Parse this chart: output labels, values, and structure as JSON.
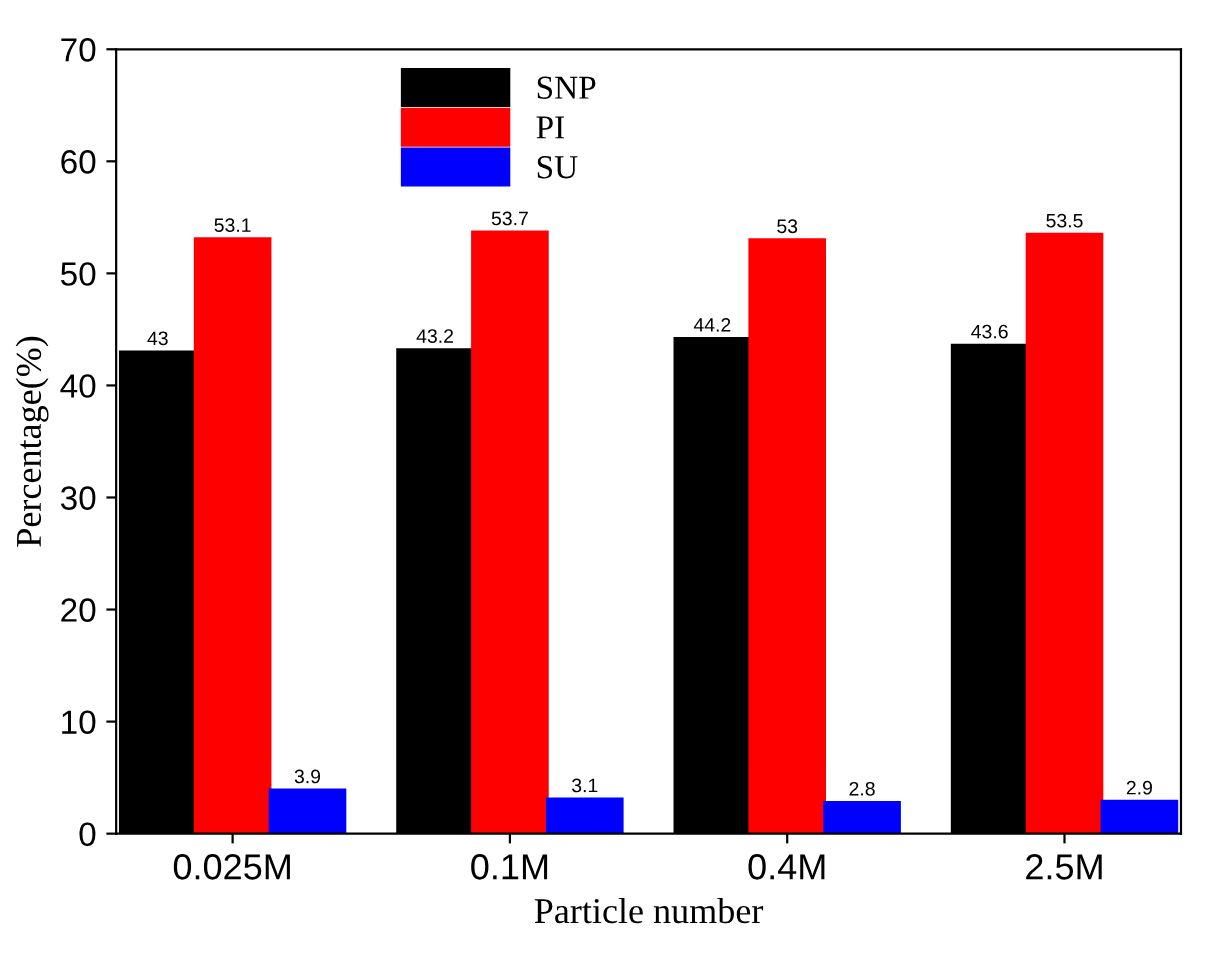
{
  "chart_data": {
    "type": "bar",
    "xlabel": "Particle number",
    "ylabel": "Percentage(%)",
    "categories": [
      "0.025M",
      "0.1M",
      "0.4M",
      "2.5M"
    ],
    "series": [
      {
        "name": "SNP",
        "color": "#000000",
        "values": [
          43,
          43.2,
          44.2,
          43.6
        ]
      },
      {
        "name": "PI",
        "color": "#ff0000",
        "values": [
          53.1,
          53.7,
          53,
          53.5
        ]
      },
      {
        "name": "SU",
        "color": "#0000ff",
        "values": [
          3.9,
          3.1,
          2.8,
          2.9
        ]
      }
    ],
    "ylim": [
      0,
      70
    ],
    "yticks": [
      0,
      10,
      20,
      30,
      40,
      50,
      60,
      70
    ],
    "data_labels": true,
    "legend": "top",
    "grid": false
  }
}
